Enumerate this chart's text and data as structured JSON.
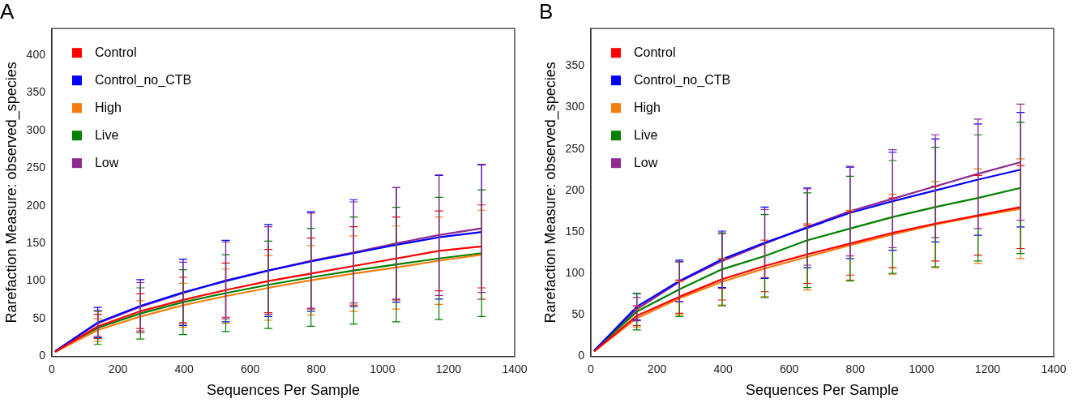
{
  "chart_data": [
    {
      "type": "line",
      "title": "A",
      "xlabel": "Sequences Per Sample",
      "ylabel": "Rarefaction Measure: observed_species",
      "x": [
        10,
        139,
        268,
        397,
        526,
        655,
        784,
        913,
        1042,
        1171,
        1300
      ],
      "xlim": [
        0,
        1400
      ],
      "xticks": [
        0,
        200,
        400,
        600,
        800,
        1000,
        1200,
        1400
      ],
      "ylim": [
        0,
        435
      ],
      "yticks": [
        0,
        50,
        100,
        150,
        200,
        250,
        300,
        350,
        400
      ],
      "grid": false,
      "legend": "top left",
      "marker": "none",
      "line_style": "solid",
      "series": [
        {
          "name": "Control",
          "color": "#ff0000",
          "values": [
            6,
            40,
            60,
            75,
            88,
            100,
            110,
            120,
            130,
            140,
            146
          ],
          "errors": [
            null,
            16,
            23,
            30,
            36,
            42,
            47,
            52,
            55,
            53,
            55
          ]
        },
        {
          "name": "Control_no_CTB",
          "color": "#0000ff",
          "values": [
            7,
            45,
            67,
            85,
            100,
            114,
            126,
            137,
            148,
            158,
            165
          ],
          "errors": [
            null,
            20,
            35,
            44,
            54,
            61,
            66,
            71,
            76,
            82,
            89
          ]
        },
        {
          "name": "High",
          "color": "#f57d0f",
          "values": [
            6,
            35,
            53,
            68,
            80,
            91,
            101,
            110,
            118,
            127,
            135
          ],
          "errors": [
            null,
            15,
            21,
            29,
            36,
            43,
            46,
            50,
            55,
            58,
            59
          ]
        },
        {
          "name": "Live",
          "color": "#008000",
          "values": [
            6,
            38,
            57,
            72,
            84,
            95,
            105,
            114,
            122,
            130,
            137
          ],
          "errors": [
            null,
            22,
            34,
            43,
            51,
            58,
            65,
            71,
            76,
            81,
            84
          ]
        },
        {
          "name": "Low",
          "color": "#8e2a8e",
          "values": [
            7,
            44,
            66,
            84,
            101,
            114,
            127,
            138,
            150,
            161,
            170
          ],
          "errors": [
            null,
            17,
            32,
            41,
            51,
            58,
            63,
            67,
            74,
            80,
            85
          ]
        }
      ]
    },
    {
      "type": "line",
      "title": "B",
      "xlabel": "Sequences Per Sample",
      "ylabel": "Rarefaction Measure: observed_species",
      "x": [
        10,
        139,
        268,
        397,
        526,
        655,
        784,
        913,
        1042,
        1171,
        1300
      ],
      "xlim": [
        0,
        1400
      ],
      "xticks": [
        0,
        200,
        400,
        600,
        800,
        1000,
        1200,
        1400
      ],
      "ylim": [
        0,
        395
      ],
      "yticks": [
        0,
        50,
        100,
        150,
        200,
        250,
        300,
        350
      ],
      "grid": false,
      "legend": "top left",
      "marker": "none",
      "line_style": "solid",
      "series": [
        {
          "name": "Control",
          "color": "#ff0000",
          "values": [
            6,
            49,
            72,
            93,
            109,
            123,
            136,
            149,
            160,
            170,
            180
          ],
          "errors": [
            null,
            12,
            20,
            25,
            31,
            35,
            38,
            42,
            45,
            48,
            50
          ]
        },
        {
          "name": "Control_no_CTB",
          "color": "#0000ff",
          "values": [
            7,
            60,
            91,
            117,
            137,
            155,
            173,
            187,
            200,
            213,
            225
          ],
          "errors": [
            null,
            16,
            25,
            34,
            43,
            48,
            55,
            59,
            62,
            67,
            69
          ]
        },
        {
          "name": "High",
          "color": "#f57d0f",
          "values": [
            6,
            46,
            70,
            90,
            106,
            120,
            134,
            147,
            159,
            169,
            178
          ],
          "errors": [
            null,
            11,
            20,
            28,
            34,
            40,
            42,
            48,
            52,
            57,
            60
          ]
        },
        {
          "name": "Live",
          "color": "#008000",
          "values": [
            7,
            54,
            81,
            105,
            121,
            140,
            154,
            168,
            180,
            191,
            203
          ],
          "errors": [
            null,
            22,
            33,
            44,
            50,
            57,
            63,
            68,
            72,
            76,
            79
          ]
        },
        {
          "name": "Low",
          "color": "#8e2a8e",
          "values": [
            7,
            57,
            90,
            115,
            136,
            156,
            175,
            190,
            205,
            220,
            234
          ],
          "errors": [
            null,
            14,
            24,
            33,
            41,
            46,
            54,
            59,
            62,
            66,
            70
          ]
        }
      ]
    }
  ]
}
